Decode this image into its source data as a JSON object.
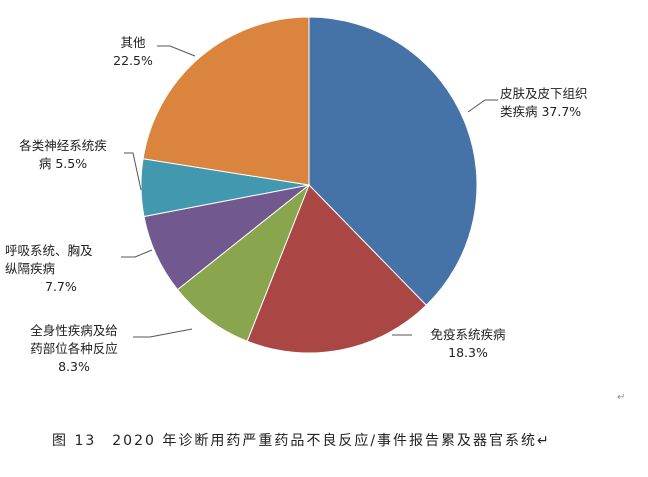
{
  "chart_data": {
    "type": "pie",
    "start": "12 o'clock",
    "direction": "clockwise",
    "slices": [
      {
        "label": "皮肤及皮下组织类疾病",
        "label_lines": [
          "皮肤及皮下组织",
          "类疾病 37.7%"
        ],
        "value": 37.7,
        "color": "#4572A7"
      },
      {
        "label": "免疫系统疾病",
        "label_lines": [
          "免疫系统疾病",
          "18.3%"
        ],
        "value": 18.3,
        "color": "#AA4643"
      },
      {
        "label": "全身性疾病及给药部位各种反应",
        "label_lines": [
          "全身性疾病及给",
          "药部位各种反应",
          "8.3%"
        ],
        "value": 8.3,
        "color": "#89A54E"
      },
      {
        "label": "呼吸系统、胸及纵隔疾病",
        "label_lines": [
          "呼吸系统、胸及",
          "纵隔疾病",
          "7.7%"
        ],
        "value": 7.7,
        "color": "#71588F"
      },
      {
        "label": "各类神经系统疾病",
        "label_lines": [
          "各类神经系统疾",
          "病 5.5%"
        ],
        "value": 5.5,
        "color": "#4198AF"
      },
      {
        "label": "其他",
        "label_lines": [
          "其他",
          "22.5%"
        ],
        "value": 22.5,
        "color": "#DB843D"
      }
    ]
  },
  "caption": "图 13　2020 年诊断用药严重药品不良反应/事件报告累及器官系统↵",
  "paragraph_mark": "↵"
}
